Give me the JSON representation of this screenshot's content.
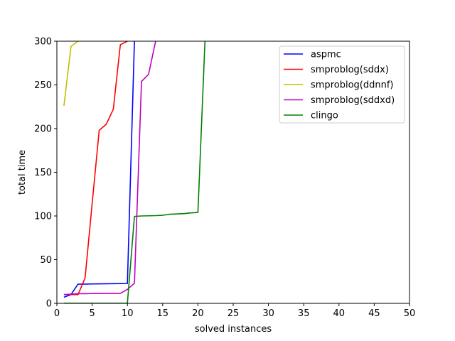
{
  "chart_data": {
    "type": "line",
    "xlabel": "solved instances",
    "ylabel": "total time",
    "xlim": [
      0,
      50
    ],
    "ylim": [
      0,
      300
    ],
    "xticks": [
      0,
      5,
      10,
      15,
      20,
      25,
      30,
      35,
      40,
      45,
      50
    ],
    "yticks": [
      0,
      50,
      100,
      150,
      200,
      250,
      300
    ],
    "grid": false,
    "legend": "top-right",
    "series": [
      {
        "name": "aspmc",
        "color": "#0000ff",
        "x": [
          1,
          2,
          3,
          4,
          5,
          6,
          7,
          8,
          9,
          10,
          11
        ],
        "y": [
          7,
          10,
          22,
          22,
          22.2,
          22.3,
          22.4,
          22.5,
          22.6,
          22.7,
          301
        ]
      },
      {
        "name": "smproblog(sddx)",
        "color": "#ff0000",
        "x": [
          1,
          2,
          3,
          4,
          5,
          6,
          7,
          8,
          9,
          10
        ],
        "y": [
          10,
          10,
          10,
          29,
          114,
          198,
          205,
          222,
          296,
          300
        ]
      },
      {
        "name": "smproblog(ddnnf)",
        "color": "#bfbf00",
        "x": [
          1,
          2,
          3
        ],
        "y": [
          226,
          294,
          300
        ]
      },
      {
        "name": "smproblog(sddxd)",
        "color": "#bf00bf",
        "x": [
          1,
          2,
          3,
          4,
          5,
          6,
          7,
          8,
          9,
          10,
          11,
          12,
          13,
          14
        ],
        "y": [
          10,
          10.5,
          11,
          11,
          11.2,
          11.3,
          11.3,
          11.4,
          11.4,
          16,
          23,
          254,
          262,
          300
        ]
      },
      {
        "name": "clingo",
        "color": "#008000",
        "x": [
          1,
          2,
          3,
          4,
          5,
          6,
          7,
          8,
          9,
          10,
          11,
          12,
          13,
          14,
          15,
          16,
          17,
          18,
          19,
          20,
          21
        ],
        "y": [
          0.2,
          0.2,
          0.2,
          0.2,
          0.2,
          0.2,
          0.2,
          0.2,
          0.2,
          0.2,
          99.5,
          100,
          100.2,
          100.4,
          100.8,
          102,
          102.3,
          102.7,
          103.5,
          104,
          300
        ]
      }
    ]
  }
}
